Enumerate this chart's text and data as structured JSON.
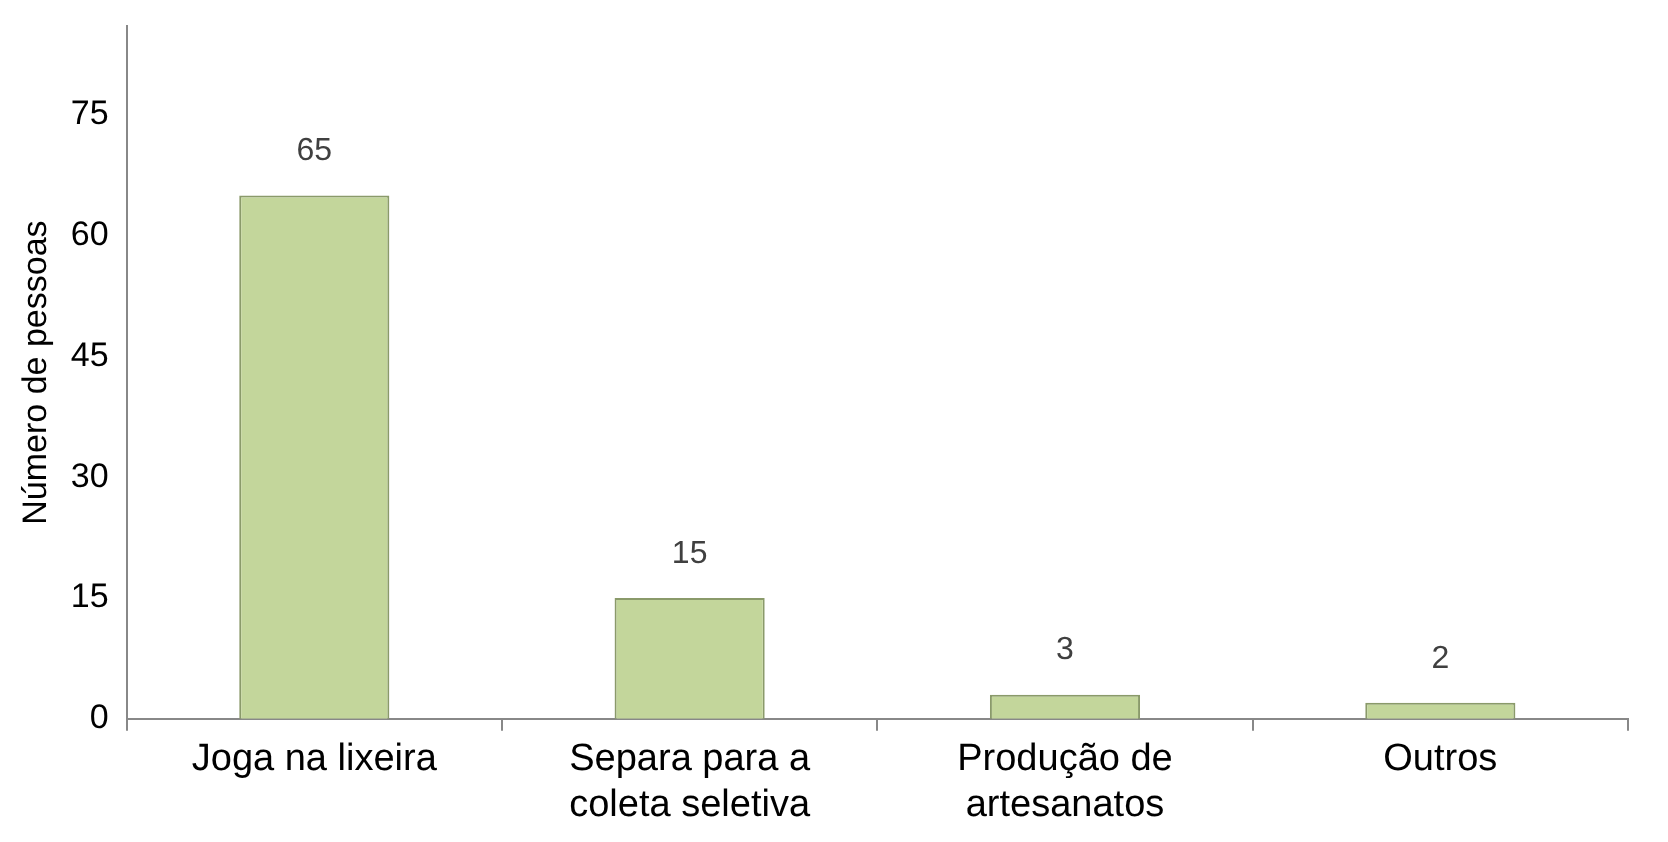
{
  "chart_data": {
    "type": "bar",
    "ylabel": "Número de pessoas",
    "categories": [
      "Joga na lixeira",
      "Separa para a coleta seletiva",
      "Produção de artesanatos",
      "Outros"
    ],
    "values": [
      65,
      15,
      3,
      2
    ],
    "color": "#c3d69b",
    "ylim": [
      0,
      86
    ],
    "yticks": [
      0,
      15,
      30,
      45,
      60,
      75
    ],
    "grid": false,
    "legend": false,
    "data_labels": true
  }
}
